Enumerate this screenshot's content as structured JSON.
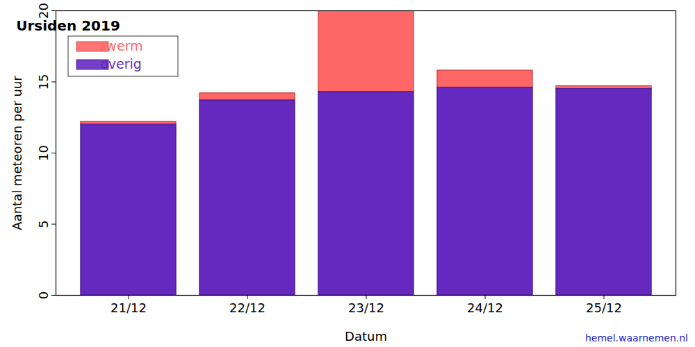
{
  "chart_data": {
    "type": "bar",
    "title": "Ursiden 2019",
    "x_label": "Datum",
    "y_label": "Aantal meteoren per uur",
    "annotations": [
      "hemel.waarnemen.nl"
    ],
    "categories": [
      "21/12",
      "22/12",
      "23/12",
      "24/12",
      "25/12"
    ],
    "series": [
      {
        "name": "zwerm",
        "color": "#ff6666",
        "values": [
          0.2,
          0.5,
          5.7,
          1.2,
          0.2
        ]
      },
      {
        "name": "overig",
        "color": "#6629c0",
        "values": [
          12.0,
          13.7,
          14.3,
          14.6,
          14.5
        ]
      }
    ],
    "stacked": true,
    "legend": "top-left",
    "grid": false,
    "ylim": [
      0,
      20
    ],
    "yticks": [
      0,
      5,
      10,
      15,
      20
    ]
  }
}
